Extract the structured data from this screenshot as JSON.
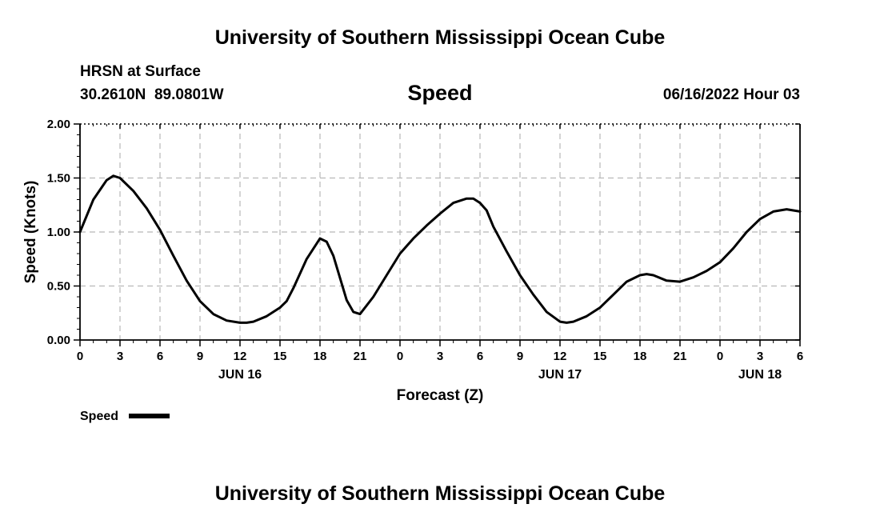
{
  "header": {
    "title": "University of Southern Mississippi Ocean Cube",
    "station": "HRSN at Surface",
    "coords": "30.2610N  89.0801W",
    "variable": "Speed",
    "datetime": "06/16/2022 Hour 03"
  },
  "footer": {
    "title": "University of Southern Mississippi Ocean Cube"
  },
  "chart_data": {
    "type": "line",
    "xlabel": "Forecast (Z)",
    "ylabel": "Speed (Knots)",
    "ylim": [
      0,
      2.0
    ],
    "yticks": [
      "0.00",
      "0.50",
      "1.00",
      "1.50",
      "2.00"
    ],
    "xlim": [
      0,
      54
    ],
    "xticks": [
      {
        "h": 0,
        "label": "0"
      },
      {
        "h": 3,
        "label": "3"
      },
      {
        "h": 6,
        "label": "6"
      },
      {
        "h": 9,
        "label": "9"
      },
      {
        "h": 12,
        "label": "12"
      },
      {
        "h": 15,
        "label": "15"
      },
      {
        "h": 18,
        "label": "18"
      },
      {
        "h": 21,
        "label": "21"
      },
      {
        "h": 24,
        "label": "0"
      },
      {
        "h": 27,
        "label": "3"
      },
      {
        "h": 30,
        "label": "6"
      },
      {
        "h": 33,
        "label": "9"
      },
      {
        "h": 36,
        "label": "12"
      },
      {
        "h": 39,
        "label": "15"
      },
      {
        "h": 42,
        "label": "18"
      },
      {
        "h": 45,
        "label": "21"
      },
      {
        "h": 48,
        "label": "0"
      },
      {
        "h": 51,
        "label": "3"
      },
      {
        "h": 54,
        "label": "6"
      }
    ],
    "date_labels": [
      {
        "h": 12,
        "label": "JUN 16"
      },
      {
        "h": 36,
        "label": "JUN 17"
      },
      {
        "h": 51,
        "label": "JUN 18"
      }
    ],
    "grid": true,
    "legend": "bottom-left",
    "series": [
      {
        "name": "Speed",
        "color": "#000000",
        "x": [
          0,
          1,
          2,
          2.5,
          3,
          4,
          5,
          6,
          7,
          8,
          9,
          10,
          11,
          12,
          12.5,
          13,
          14,
          15,
          15.5,
          16,
          17,
          18,
          18.5,
          19,
          20,
          20.5,
          21,
          22,
          23,
          24,
          25,
          26,
          27,
          28,
          29,
          29.5,
          30,
          30.5,
          31,
          32,
          33,
          34,
          35,
          36,
          36.5,
          37,
          38,
          39,
          40,
          41,
          42,
          42.5,
          43,
          44,
          45,
          46,
          47,
          48,
          49,
          50,
          51,
          52,
          53,
          54
        ],
        "y": [
          1.0,
          1.3,
          1.48,
          1.52,
          1.5,
          1.38,
          1.22,
          1.02,
          0.78,
          0.55,
          0.36,
          0.24,
          0.18,
          0.16,
          0.16,
          0.17,
          0.22,
          0.3,
          0.36,
          0.48,
          0.75,
          0.94,
          0.91,
          0.78,
          0.37,
          0.26,
          0.24,
          0.4,
          0.6,
          0.8,
          0.94,
          1.06,
          1.17,
          1.27,
          1.31,
          1.31,
          1.27,
          1.2,
          1.05,
          0.82,
          0.6,
          0.42,
          0.26,
          0.17,
          0.16,
          0.17,
          0.22,
          0.3,
          0.42,
          0.54,
          0.6,
          0.61,
          0.6,
          0.55,
          0.54,
          0.58,
          0.64,
          0.72,
          0.85,
          1.0,
          1.12,
          1.19,
          1.21,
          1.19
        ]
      }
    ]
  }
}
